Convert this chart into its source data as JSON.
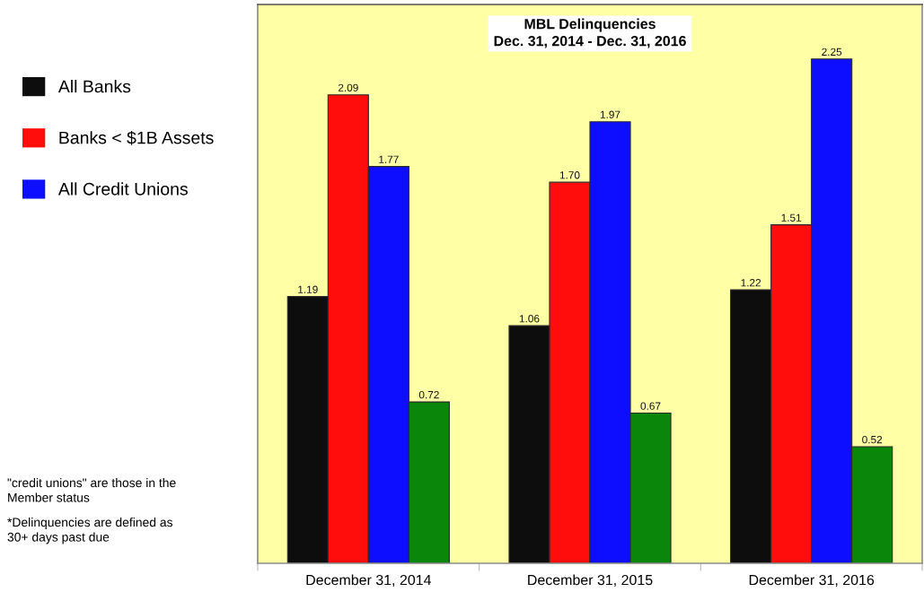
{
  "chart_data": {
    "type": "bar",
    "title": "MBL Delinquencies",
    "subtitle": "Dec. 31, 2014 - Dec. 31, 2016",
    "categories": [
      "December 31, 2014",
      "December 31, 2015",
      "December 31, 2016"
    ],
    "series": [
      {
        "name": "All Banks",
        "color": "#0d0d0d",
        "values": [
          1.19,
          1.06,
          1.22
        ],
        "value_labels": [
          "1.19",
          "1.06",
          "1.22"
        ]
      },
      {
        "name": "Banks < $1B Assets",
        "color": "#ff0d0d",
        "values": [
          2.09,
          1.7,
          1.51
        ],
        "value_labels": [
          "2.09",
          "1.70",
          "1.51"
        ]
      },
      {
        "name": "All Credit Unions",
        "color": "#0d0dff",
        "values": [
          1.77,
          1.97,
          2.25
        ],
        "value_labels": [
          "1.77",
          "1.97",
          "2.25"
        ]
      },
      {
        "color": "#0a870a",
        "values": [
          0.72,
          0.67,
          0.52
        ],
        "value_labels": [
          "0.72",
          "0.67",
          "0.52"
        ]
      }
    ],
    "legend": "left",
    "tick_labels": "x",
    "annotations": [
      "\"credit unions\" are those in the\nMember status",
      "*Delinquencies are defined as\n30+ days past due"
    ]
  }
}
